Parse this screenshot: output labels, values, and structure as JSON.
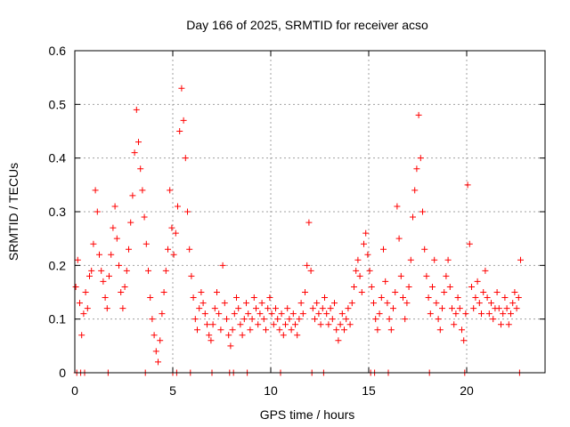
{
  "chart_data": {
    "type": "scatter",
    "title": "Day 166 of 2025, SRMTID for receiver acso",
    "xlabel": "GPS time / hours",
    "ylabel": "SRMTID / TECUs",
    "xlim": [
      0,
      24
    ],
    "ylim": [
      0,
      0.6
    ],
    "x_ticks": [
      0,
      5,
      10,
      15,
      20
    ],
    "x_tick_labels": [
      "0",
      "5",
      "10",
      "15",
      "20"
    ],
    "y_ticks": [
      0,
      0.1,
      0.2,
      0.3,
      0.4,
      0.5,
      0.6
    ],
    "y_tick_labels": [
      "0",
      "0.1",
      "0.2",
      "0.3",
      "0.4",
      "0.5",
      "0.6"
    ],
    "grid": true,
    "marker": "plus",
    "colors": {
      "series": "#ff0000",
      "grid": "#a0a0a0",
      "axis": "#000000"
    },
    "series": [
      {
        "name": "SRMTID",
        "points": [
          [
            0.05,
            0.16
          ],
          [
            0.15,
            0.21
          ],
          [
            0.25,
            0.13
          ],
          [
            0.35,
            0.07
          ],
          [
            0.45,
            0.11
          ],
          [
            0.55,
            0.15
          ],
          [
            0.65,
            0.12
          ],
          [
            0.75,
            0.18
          ],
          [
            0.85,
            0.19
          ],
          [
            0.95,
            0.24
          ],
          [
            1.05,
            0.34
          ],
          [
            1.15,
            0.3
          ],
          [
            1.25,
            0.22
          ],
          [
            1.35,
            0.19
          ],
          [
            1.45,
            0.17
          ],
          [
            1.55,
            0.14
          ],
          [
            1.65,
            0.12
          ],
          [
            1.75,
            0.18
          ],
          [
            1.85,
            0.22
          ],
          [
            1.95,
            0.27
          ],
          [
            2.05,
            0.31
          ],
          [
            2.15,
            0.25
          ],
          [
            2.25,
            0.2
          ],
          [
            2.35,
            0.15
          ],
          [
            2.45,
            0.12
          ],
          [
            2.55,
            0.16
          ],
          [
            2.65,
            0.19
          ],
          [
            2.75,
            0.23
          ],
          [
            2.85,
            0.28
          ],
          [
            2.95,
            0.33
          ],
          [
            3.05,
            0.41
          ],
          [
            3.15,
            0.49
          ],
          [
            3.25,
            0.43
          ],
          [
            3.35,
            0.38
          ],
          [
            3.45,
            0.34
          ],
          [
            3.55,
            0.29
          ],
          [
            3.65,
            0.24
          ],
          [
            3.75,
            0.19
          ],
          [
            3.85,
            0.14
          ],
          [
            3.95,
            0.1
          ],
          [
            4.05,
            0.07
          ],
          [
            4.15,
            0.04
          ],
          [
            4.25,
            0.02
          ],
          [
            4.35,
            0.06
          ],
          [
            4.45,
            0.11
          ],
          [
            4.55,
            0.15
          ],
          [
            4.65,
            0.19
          ],
          [
            4.75,
            0.23
          ],
          [
            4.85,
            0.34
          ],
          [
            4.95,
            0.27
          ],
          [
            5.05,
            0.22
          ],
          [
            5.15,
            0.26
          ],
          [
            5.25,
            0.31
          ],
          [
            5.35,
            0.45
          ],
          [
            5.45,
            0.53
          ],
          [
            5.55,
            0.47
          ],
          [
            5.65,
            0.4
          ],
          [
            5.75,
            0.3
          ],
          [
            5.85,
            0.23
          ],
          [
            5.95,
            0.18
          ],
          [
            6.05,
            0.14
          ],
          [
            6.15,
            0.1
          ],
          [
            6.25,
            0.08
          ],
          [
            6.35,
            0.12
          ],
          [
            6.45,
            0.15
          ],
          [
            6.55,
            0.13
          ],
          [
            6.65,
            0.11
          ],
          [
            6.75,
            0.09
          ],
          [
            6.85,
            0.07
          ],
          [
            6.95,
            0.06
          ],
          [
            7.05,
            0.09
          ],
          [
            7.15,
            0.12
          ],
          [
            7.25,
            0.15
          ],
          [
            7.35,
            0.11
          ],
          [
            7.45,
            0.08
          ],
          [
            7.55,
            0.2
          ],
          [
            7.65,
            0.13
          ],
          [
            7.75,
            0.1
          ],
          [
            7.85,
            0.07
          ],
          [
            7.95,
            0.05
          ],
          [
            8.05,
            0.08
          ],
          [
            8.15,
            0.11
          ],
          [
            8.25,
            0.14
          ],
          [
            8.35,
            0.12
          ],
          [
            8.45,
            0.09
          ],
          [
            8.55,
            0.07
          ],
          [
            8.65,
            0.1
          ],
          [
            8.75,
            0.13
          ],
          [
            8.85,
            0.11
          ],
          [
            8.95,
            0.08
          ],
          [
            9.05,
            0.1
          ],
          [
            9.15,
            0.14
          ],
          [
            9.25,
            0.12
          ],
          [
            9.35,
            0.09
          ],
          [
            9.45,
            0.11
          ],
          [
            9.55,
            0.13
          ],
          [
            9.65,
            0.1
          ],
          [
            9.75,
            0.08
          ],
          [
            9.85,
            0.12
          ],
          [
            9.95,
            0.14
          ],
          [
            10.05,
            0.11
          ],
          [
            10.15,
            0.09
          ],
          [
            10.25,
            0.12
          ],
          [
            10.35,
            0.1
          ],
          [
            10.45,
            0.08
          ],
          [
            10.55,
            0.11
          ],
          [
            10.65,
            0.07
          ],
          [
            10.75,
            0.09
          ],
          [
            10.85,
            0.12
          ],
          [
            10.95,
            0.1
          ],
          [
            11.05,
            0.08
          ],
          [
            11.15,
            0.11
          ],
          [
            11.25,
            0.09
          ],
          [
            11.35,
            0.07
          ],
          [
            11.45,
            0.1
          ],
          [
            11.55,
            0.13
          ],
          [
            11.65,
            0.11
          ],
          [
            11.75,
            0.15
          ],
          [
            11.85,
            0.2
          ],
          [
            11.95,
            0.28
          ],
          [
            12.05,
            0.19
          ],
          [
            12.15,
            0.12
          ],
          [
            12.25,
            0.1
          ],
          [
            12.35,
            0.13
          ],
          [
            12.45,
            0.11
          ],
          [
            12.55,
            0.09
          ],
          [
            12.65,
            0.12
          ],
          [
            12.75,
            0.14
          ],
          [
            12.85,
            0.11
          ],
          [
            12.95,
            0.09
          ],
          [
            13.05,
            0.12
          ],
          [
            13.15,
            0.1
          ],
          [
            13.25,
            0.13
          ],
          [
            13.35,
            0.08
          ],
          [
            13.45,
            0.06
          ],
          [
            13.55,
            0.09
          ],
          [
            13.65,
            0.11
          ],
          [
            13.75,
            0.08
          ],
          [
            13.85,
            0.1
          ],
          [
            13.95,
            0.12
          ],
          [
            14.05,
            0.09
          ],
          [
            14.15,
            0.13
          ],
          [
            14.25,
            0.16
          ],
          [
            14.35,
            0.19
          ],
          [
            14.45,
            0.21
          ],
          [
            14.55,
            0.18
          ],
          [
            14.65,
            0.15
          ],
          [
            14.75,
            0.24
          ],
          [
            14.85,
            0.26
          ],
          [
            14.95,
            0.22
          ],
          [
            15.05,
            0.19
          ],
          [
            15.15,
            0.16
          ],
          [
            15.25,
            0.13
          ],
          [
            15.35,
            0.1
          ],
          [
            15.45,
            0.08
          ],
          [
            15.55,
            0.11
          ],
          [
            15.65,
            0.14
          ],
          [
            15.75,
            0.23
          ],
          [
            15.85,
            0.17
          ],
          [
            15.95,
            0.13
          ],
          [
            16.05,
            0.1
          ],
          [
            16.15,
            0.08
          ],
          [
            16.25,
            0.12
          ],
          [
            16.35,
            0.15
          ],
          [
            16.45,
            0.31
          ],
          [
            16.55,
            0.25
          ],
          [
            16.65,
            0.18
          ],
          [
            16.75,
            0.14
          ],
          [
            16.85,
            0.1
          ],
          [
            16.95,
            0.13
          ],
          [
            17.05,
            0.16
          ],
          [
            17.15,
            0.21
          ],
          [
            17.25,
            0.29
          ],
          [
            17.35,
            0.34
          ],
          [
            17.45,
            0.38
          ],
          [
            17.55,
            0.48
          ],
          [
            17.65,
            0.4
          ],
          [
            17.75,
            0.3
          ],
          [
            17.85,
            0.23
          ],
          [
            17.95,
            0.18
          ],
          [
            18.05,
            0.14
          ],
          [
            18.15,
            0.11
          ],
          [
            18.25,
            0.16
          ],
          [
            18.35,
            0.21
          ],
          [
            18.45,
            0.13
          ],
          [
            18.55,
            0.1
          ],
          [
            18.65,
            0.08
          ],
          [
            18.75,
            0.12
          ],
          [
            18.85,
            0.15
          ],
          [
            18.95,
            0.18
          ],
          [
            19.05,
            0.21
          ],
          [
            19.15,
            0.16
          ],
          [
            19.25,
            0.12
          ],
          [
            19.35,
            0.09
          ],
          [
            19.45,
            0.11
          ],
          [
            19.55,
            0.14
          ],
          [
            19.65,
            0.12
          ],
          [
            19.75,
            0.08
          ],
          [
            19.85,
            0.06
          ],
          [
            19.95,
            0.11
          ],
          [
            20.05,
            0.35
          ],
          [
            20.15,
            0.24
          ],
          [
            20.25,
            0.16
          ],
          [
            20.35,
            0.12
          ],
          [
            20.45,
            0.14
          ],
          [
            20.55,
            0.17
          ],
          [
            20.65,
            0.13
          ],
          [
            20.75,
            0.11
          ],
          [
            20.85,
            0.15
          ],
          [
            20.95,
            0.19
          ],
          [
            21.05,
            0.14
          ],
          [
            21.15,
            0.11
          ],
          [
            21.25,
            0.13
          ],
          [
            21.35,
            0.1
          ],
          [
            21.45,
            0.12
          ],
          [
            21.55,
            0.15
          ],
          [
            21.65,
            0.12
          ],
          [
            21.75,
            0.09
          ],
          [
            21.85,
            0.11
          ],
          [
            21.95,
            0.14
          ],
          [
            22.05,
            0.12
          ],
          [
            22.15,
            0.09
          ],
          [
            22.25,
            0.11
          ],
          [
            22.35,
            0.13
          ],
          [
            22.45,
            0.15
          ],
          [
            22.55,
            0.12
          ],
          [
            22.65,
            0.14
          ],
          [
            22.75,
            0.21
          ]
        ]
      }
    ],
    "zero_points_x": [
      0.1,
      0.3,
      0.5,
      1.7,
      3.6,
      5.0,
      5.2,
      5.9,
      7.0,
      7.9,
      8.1,
      8.8,
      10.5,
      12.1,
      12.7,
      15.1,
      15.3,
      16.0,
      18.1,
      19.9,
      22.7
    ]
  }
}
